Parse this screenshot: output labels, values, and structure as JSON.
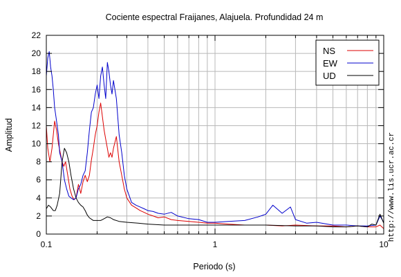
{
  "chart_data": {
    "type": "line",
    "title": "Cociente espectral Fraijanes, Alajuela. Profundidad 24 m",
    "xlabel": "Periodo (s)",
    "ylabel": "Amplitud",
    "xscale": "log",
    "xlim": [
      0.1,
      10
    ],
    "ylim": [
      0,
      22
    ],
    "x_ticks": [
      0.1,
      1,
      10
    ],
    "x_tick_labels": [
      "0.1",
      "1",
      "10"
    ],
    "y_ticks": [
      0,
      2,
      4,
      6,
      8,
      10,
      12,
      14,
      16,
      18,
      20,
      22
    ],
    "y_tick_labels": [
      "0",
      "2",
      "4",
      "6",
      "8",
      "10",
      "12",
      "14",
      "16",
      "18",
      "20",
      "22"
    ],
    "grid": true,
    "legend_position": "top-right",
    "series": [
      {
        "name": "NS",
        "color": "#dd0000",
        "x": [
          0.1,
          0.102,
          0.105,
          0.108,
          0.112,
          0.115,
          0.118,
          0.121,
          0.124,
          0.127,
          0.13,
          0.134,
          0.138,
          0.142,
          0.146,
          0.15,
          0.155,
          0.16,
          0.165,
          0.17,
          0.175,
          0.18,
          0.185,
          0.19,
          0.195,
          0.2,
          0.205,
          0.21,
          0.215,
          0.22,
          0.225,
          0.23,
          0.235,
          0.24,
          0.245,
          0.25,
          0.26,
          0.27,
          0.28,
          0.29,
          0.3,
          0.32,
          0.34,
          0.36,
          0.38,
          0.4,
          0.43,
          0.46,
          0.5,
          0.55,
          0.6,
          0.7,
          0.8,
          0.9,
          1.0,
          1.2,
          1.5,
          2.0,
          2.5,
          3.0,
          4.0,
          5.0,
          6.0,
          7.0,
          8.0,
          9.0,
          9.5,
          10
        ],
        "values": [
          12,
          9.5,
          8,
          9.5,
          12.5,
          11.5,
          10,
          9,
          8,
          7.5,
          8,
          6.5,
          5,
          4.2,
          3.8,
          4,
          5.5,
          4.5,
          5.8,
          6.5,
          5.8,
          6.5,
          8.2,
          9.5,
          11,
          12,
          13.5,
          14.5,
          13,
          11.5,
          10.5,
          9.5,
          8.5,
          9,
          8.5,
          9.5,
          10.8,
          8,
          6.5,
          5,
          4,
          3.2,
          2.9,
          2.6,
          2.4,
          2.2,
          2.0,
          1.8,
          1.9,
          1.6,
          1.5,
          1.4,
          1.3,
          1.2,
          1.2,
          1.1,
          1.0,
          1.0,
          0.9,
          1.0,
          0.9,
          0.9,
          0.8,
          0.9,
          0.8,
          0.8,
          1.0,
          0.6
        ]
      },
      {
        "name": "EW",
        "color": "#0000cc",
        "x": [
          0.1,
          0.102,
          0.104,
          0.106,
          0.108,
          0.11,
          0.112,
          0.114,
          0.116,
          0.118,
          0.12,
          0.124,
          0.128,
          0.132,
          0.136,
          0.14,
          0.145,
          0.15,
          0.155,
          0.16,
          0.165,
          0.17,
          0.175,
          0.18,
          0.185,
          0.19,
          0.195,
          0.2,
          0.205,
          0.21,
          0.215,
          0.22,
          0.225,
          0.23,
          0.235,
          0.24,
          0.245,
          0.25,
          0.255,
          0.26,
          0.27,
          0.28,
          0.29,
          0.3,
          0.32,
          0.34,
          0.36,
          0.38,
          0.4,
          0.43,
          0.46,
          0.5,
          0.55,
          0.6,
          0.7,
          0.8,
          0.9,
          1.0,
          1.2,
          1.5,
          1.8,
          2.0,
          2.2,
          2.5,
          2.8,
          3.0,
          3.5,
          4.0,
          5.0,
          6.0,
          7.0,
          8.0,
          9.0,
          9.5,
          10
        ],
        "values": [
          17.5,
          19.5,
          20.2,
          18.5,
          17.5,
          16,
          14,
          13,
          12,
          11,
          9,
          8,
          6,
          5,
          4.2,
          4,
          3.8,
          4,
          5,
          5.5,
          6.5,
          7,
          9,
          11.5,
          13.5,
          14,
          15.5,
          16.5,
          15,
          17.5,
          18.5,
          16.5,
          15,
          19,
          18,
          16.5,
          15.5,
          17,
          16,
          15,
          11,
          9,
          6.5,
          5,
          3.5,
          3.2,
          3.0,
          2.8,
          2.6,
          2.5,
          2.3,
          2.2,
          2.4,
          2.0,
          1.7,
          1.6,
          1.3,
          1.3,
          1.4,
          1.5,
          1.9,
          2.2,
          3.2,
          2.3,
          3.0,
          1.6,
          1.2,
          1.3,
          1.0,
          1.0,
          0.9,
          0.9,
          1.0,
          2.0,
          1.3
        ]
      },
      {
        "name": "UD",
        "color": "#000000",
        "x": [
          0.1,
          0.103,
          0.106,
          0.11,
          0.113,
          0.116,
          0.12,
          0.124,
          0.128,
          0.132,
          0.136,
          0.14,
          0.145,
          0.15,
          0.155,
          0.16,
          0.165,
          0.17,
          0.175,
          0.18,
          0.19,
          0.2,
          0.21,
          0.22,
          0.23,
          0.24,
          0.25,
          0.27,
          0.3,
          0.35,
          0.4,
          0.5,
          0.6,
          0.8,
          1.0,
          1.5,
          2.0,
          3.0,
          4.0,
          5.0,
          6.0,
          7.0,
          8.0,
          8.5,
          9.0,
          9.5,
          10
        ],
        "values": [
          2.8,
          3.2,
          3.0,
          2.6,
          2.6,
          3.2,
          4.5,
          8,
          9.5,
          9,
          8,
          6.5,
          5,
          4,
          3.5,
          3.2,
          3.0,
          2.6,
          2.1,
          1.8,
          1.5,
          1.5,
          1.5,
          1.7,
          1.9,
          1.8,
          1.6,
          1.4,
          1.3,
          1.2,
          1.1,
          1.0,
          1.0,
          1.0,
          1.0,
          1.0,
          1.0,
          0.9,
          0.9,
          0.8,
          0.8,
          0.9,
          0.8,
          1.1,
          1.0,
          2.2,
          1.2
        ]
      }
    ]
  },
  "credit": "http://www.lis.ucr.ac.cr"
}
